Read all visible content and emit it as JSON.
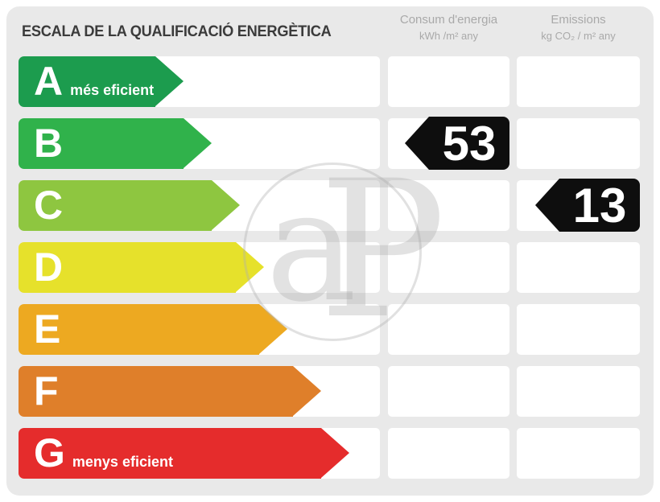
{
  "title": "ESCALA DE LA QUALIFICACIÓ ENERGÈTICA",
  "columns": {
    "consum": {
      "title": "Consum d'energia",
      "units": "kWh /m²  any"
    },
    "emissions": {
      "title": "Emissions",
      "units": "kg CO₂ / m²  any"
    }
  },
  "scale": [
    {
      "letter": "A",
      "label": "més eficient",
      "color": "#1c9c4e"
    },
    {
      "letter": "B",
      "label": "",
      "color": "#30b24b"
    },
    {
      "letter": "C",
      "label": "",
      "color": "#8ec640"
    },
    {
      "letter": "D",
      "label": "",
      "color": "#e6e12b"
    },
    {
      "letter": "E",
      "label": "",
      "color": "#eda921"
    },
    {
      "letter": "F",
      "label": "",
      "color": "#df7f2a"
    },
    {
      "letter": "G",
      "label": "menys eficient",
      "color": "#e52c2c"
    }
  ],
  "values": [
    {
      "column": "consum",
      "rating": "B",
      "value": "53"
    },
    {
      "column": "emissions",
      "rating": "C",
      "value": "13"
    }
  ],
  "watermark": {
    "letters": [
      "a",
      "P"
    ]
  },
  "colors": {
    "panel_bg": "#e9e9e9",
    "cell_bg": "#ffffff",
    "value_arrow": "#0e0e0e",
    "title_text": "#3b3b3b",
    "header_text": "#a9a9a9"
  },
  "chart_data": {
    "type": "bar",
    "title": "ESCALA DE LA QUALIFICACIÓ ENERGÈTICA",
    "categories": [
      "A",
      "B",
      "C",
      "D",
      "E",
      "F",
      "G"
    ],
    "category_colors": [
      "#1c9c4e",
      "#30b24b",
      "#8ec640",
      "#e6e12b",
      "#eda921",
      "#df7f2a",
      "#e52c2c"
    ],
    "annotations": [
      "A = més eficient",
      "G = menys eficient"
    ],
    "series": [
      {
        "name": "Consum d'energia (kWh /m² any)",
        "rating": "B",
        "value": 53
      },
      {
        "name": "Emissions (kg CO₂ / m² any)",
        "rating": "C",
        "value": 13
      }
    ],
    "legend_position": "top",
    "grid": false
  }
}
